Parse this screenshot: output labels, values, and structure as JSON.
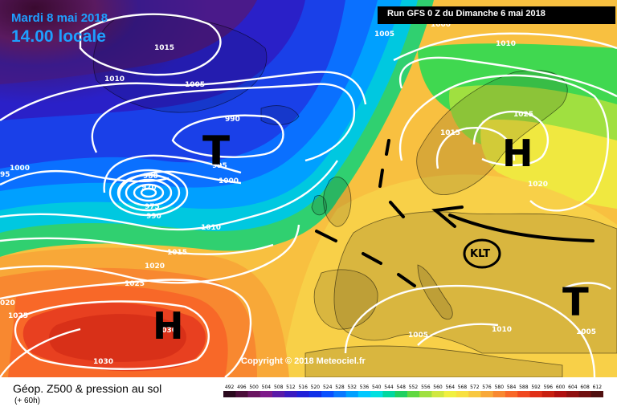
{
  "header": {
    "date": "Mardi 8 mai 2018",
    "time": "14.00 locale",
    "run": "Run GFS 0 Z du Dimanche 6 mai 2018"
  },
  "copyright": "Copyright © 2018 Meteociel.fr",
  "legend": {
    "title": "Géop. Z500 & pression au sol",
    "subtitle": "(+ 60h)",
    "scale": [
      "492",
      "496",
      "500",
      "504",
      "508",
      "512",
      "516",
      "520",
      "524",
      "528",
      "532",
      "536",
      "540",
      "544",
      "548",
      "552",
      "556",
      "560",
      "564",
      "568",
      "572",
      "576",
      "580",
      "584",
      "588",
      "592",
      "596",
      "600",
      "604",
      "608",
      "612"
    ],
    "scale_colors": [
      "#2a0a1e",
      "#4b0e3a",
      "#6a1560",
      "#7e1a8a",
      "#5a1aa8",
      "#3a1ac0",
      "#2020d8",
      "#1030e8",
      "#0a50ff",
      "#0a78ff",
      "#00a0ff",
      "#00c8ff",
      "#00e0e0",
      "#00d8a0",
      "#20d060",
      "#60d840",
      "#a0e040",
      "#d0e840",
      "#f0f040",
      "#f8e040",
      "#f8c840",
      "#f8a838",
      "#f88830",
      "#f86828",
      "#f04820",
      "#e03018",
      "#c82010",
      "#b01010",
      "#901010",
      "#701010",
      "#501010"
    ]
  },
  "isobars": [
    "1000",
    "1005",
    "1010",
    "1010",
    "1015",
    "1005",
    "990",
    "995",
    "1000",
    "980",
    "970",
    "975",
    "990",
    "1010",
    "1015",
    "1020",
    "1025",
    "1030",
    "1030",
    "1025",
    "1020",
    "1015",
    "1025",
    "1020",
    "1005",
    "1010",
    "1005",
    "95",
    "1000",
    "020"
  ],
  "systems": {
    "low_north": "T",
    "high_scand": "H",
    "high_azores": "H",
    "low_east": "T",
    "klt": "KLT"
  },
  "colors": {
    "title": "#1e9fff"
  }
}
